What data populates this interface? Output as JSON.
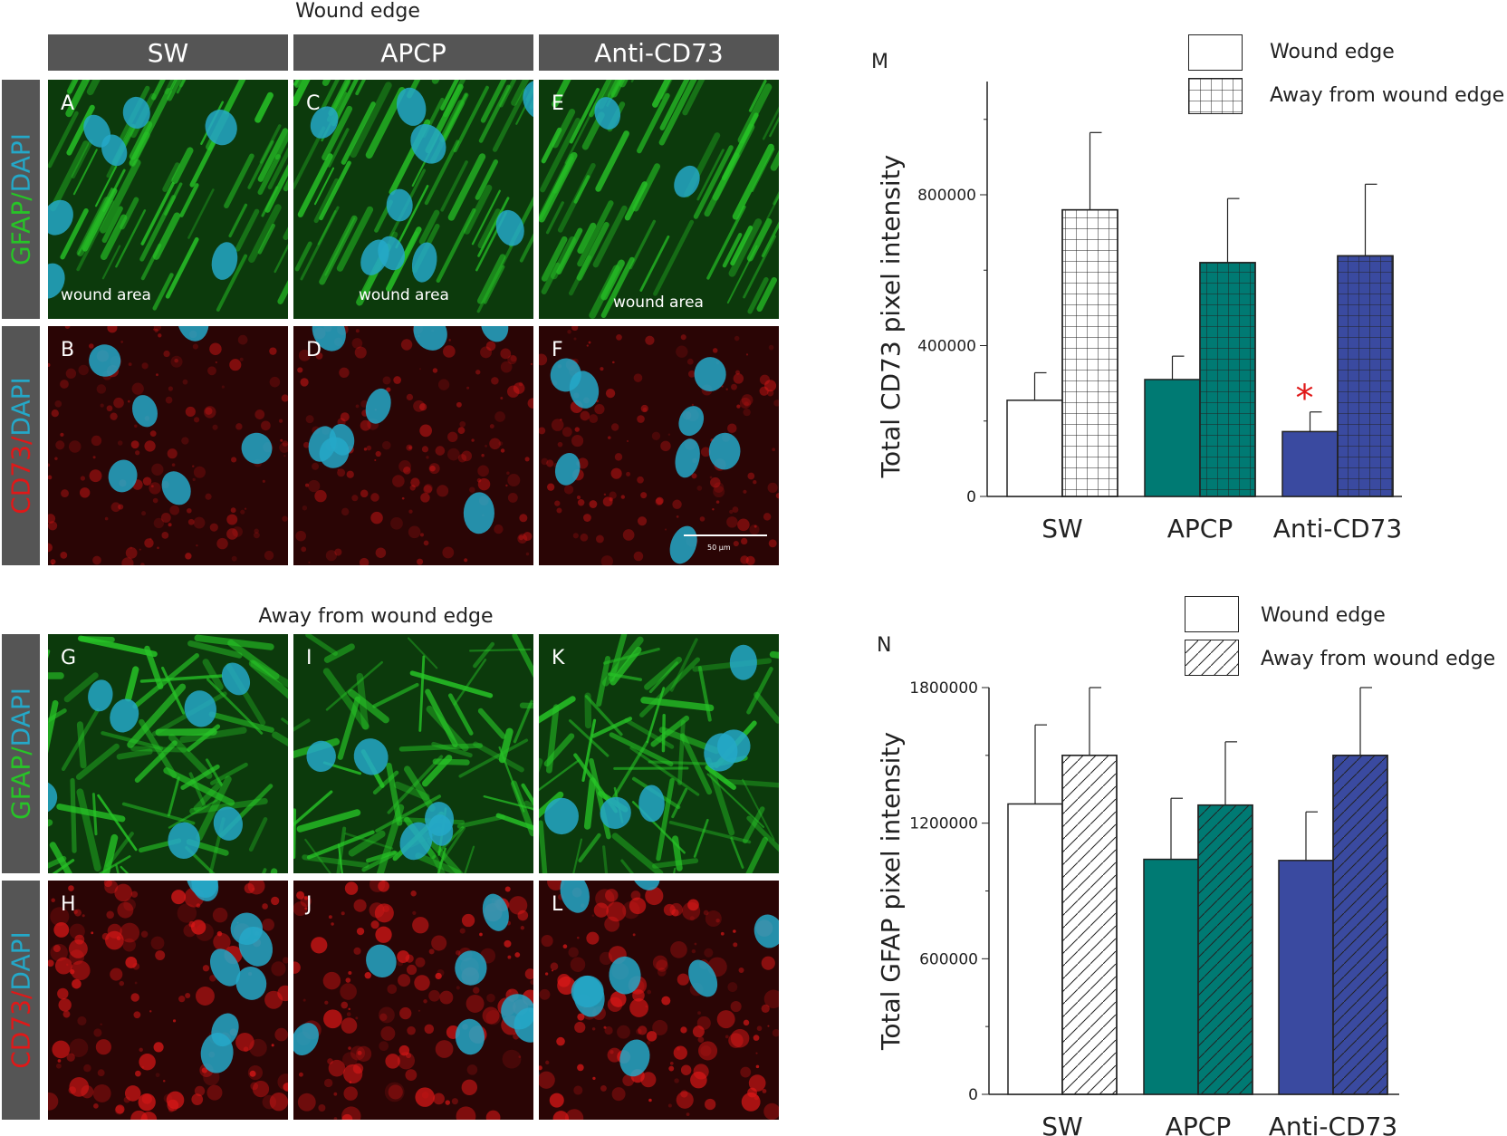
{
  "figure": {
    "top_section_title": "Wound edge",
    "bottom_section_title": "Away from wound edge",
    "column_headers": [
      "SW",
      "APCP",
      "Anti-CD73"
    ],
    "row_labels": {
      "gfap_marker": "GFAP",
      "cd73_marker": "CD73",
      "sep": "/",
      "dapi": "DAPI"
    },
    "colors": {
      "gfap": "#27c427",
      "cd73": "#e01818",
      "dapi": "#24a8c8",
      "header_bg": "#555555"
    },
    "panels": {
      "top_gfap": [
        "A",
        "C",
        "E"
      ],
      "top_cd73": [
        "B",
        "D",
        "F"
      ],
      "bottom_gfap": [
        "G",
        "I",
        "K"
      ],
      "bottom_cd73": [
        "H",
        "J",
        "L"
      ]
    },
    "wound_area_label": "wound area",
    "scale_bar_label": "50 μm"
  },
  "chart_data": [
    {
      "type": "bar",
      "panel_letter": "M",
      "ylabel": "Total CD73 pixel intensity",
      "categories": [
        "SW",
        "APCP",
        "Anti-CD73"
      ],
      "ylim": [
        0,
        1100000
      ],
      "yticks": [
        0,
        400000,
        800000
      ],
      "ytick_labels": [
        "0",
        "400000",
        "800000"
      ],
      "pattern": "grid",
      "series": [
        {
          "name": "Wound edge",
          "values": [
            255000,
            310000,
            172000
          ],
          "errors": [
            73000,
            62000,
            52000
          ]
        },
        {
          "name": "Away from wound edge",
          "values": [
            760000,
            620000,
            638000
          ],
          "errors": [
            205000,
            170000,
            190000
          ]
        }
      ],
      "annotations": [
        {
          "text": "*",
          "category": "Anti-CD73",
          "series": "Wound edge",
          "color": "#e01818"
        }
      ],
      "colors": {
        "SW": "#ffffff",
        "APCP": "#007a73",
        "Anti-CD73": "#3a4aa0"
      },
      "legend_position": "top-right"
    },
    {
      "type": "bar",
      "panel_letter": "N",
      "ylabel": "Total GFAP pixel intensity",
      "categories": [
        "SW",
        "APCP",
        "Anti-CD73"
      ],
      "ylim": [
        0,
        1800000
      ],
      "yticks": [
        0,
        600000,
        1200000,
        1800000
      ],
      "ytick_labels": [
        "0",
        "600000",
        "1200000",
        "1800000"
      ],
      "pattern": "hatch",
      "series": [
        {
          "name": "Wound edge",
          "values": [
            1285000,
            1040000,
            1035000
          ],
          "errors": [
            350000,
            270000,
            215000
          ]
        },
        {
          "name": "Away from wound edge",
          "values": [
            1500000,
            1280000,
            1500000
          ],
          "errors": [
            300000,
            280000,
            300000
          ]
        }
      ],
      "colors": {
        "SW": "#ffffff",
        "APCP": "#007a73",
        "Anti-CD73": "#3a4aa0"
      },
      "legend_position": "top-right"
    }
  ]
}
